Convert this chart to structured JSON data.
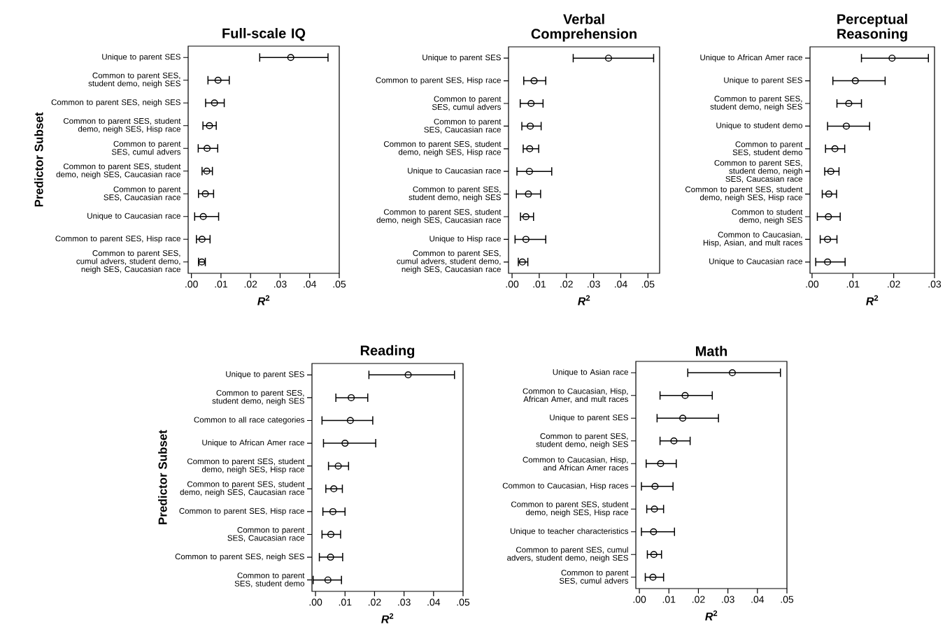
{
  "chart_data": [
    {
      "type": "scatter",
      "orientation": "horizontal",
      "marker": "circle",
      "color": "#000000",
      "title": "Full-scale IQ",
      "xlabel": "*R*$^{2}$",
      "ylabel": "Predictor Subset",
      "categories": [
        "Unique to parent SES",
        "Common to parent SES, student demo, neigh SES",
        "Common to parent SES, neigh SES",
        "Common to parent SES, student demo, neigh SES, Hisp race",
        "Common to parent SES, cumul advers",
        "Common to parent SES, student demo, neigh SES, Caucasian race",
        "Common to parent SES, Caucasian race",
        "Unique to Caucasian race",
        "Common to parent SES, Hisp race",
        "Common to parent SES, cumul advers, student demo, neigh SES, Caucasian race"
      ],
      "values": [
        0.0336,
        0.009,
        0.0078,
        0.0061,
        0.0053,
        0.0052,
        0.0047,
        0.004,
        0.0036,
        0.0035
      ],
      "errors": [
        [
          0.0231,
          0.0462
        ],
        [
          0.0056,
          0.0128
        ],
        [
          0.0048,
          0.0111
        ],
        [
          0.0039,
          0.0084
        ],
        [
          0.0023,
          0.0089
        ],
        [
          0.0036,
          0.0071
        ],
        [
          0.0024,
          0.0075
        ],
        [
          0.0011,
          0.0092
        ],
        [
          0.0017,
          0.0063
        ],
        [
          0.0024,
          0.0047
        ]
      ],
      "xlim": [
        -0.0011,
        0.05
      ],
      "xticks": [
        {
          "value": 0,
          "label": ".00"
        },
        {
          "value": 0.01,
          "label": ".01"
        },
        {
          "value": 0.02,
          "label": ".02"
        },
        {
          "value": 0.03,
          "label": ".03"
        },
        {
          "value": 0.04,
          "label": ".04"
        },
        {
          "value": 0.05,
          "label": ".05"
        }
      ]
    },
    {
      "type": "scatter",
      "orientation": "horizontal",
      "marker": "circle",
      "color": "#000000",
      "title": "Verbal Comprehension",
      "xlabel": "*R*$^{2}$",
      "categories": [
        "Unique to parent SES",
        "Common to parent SES, Hisp race",
        "Common to parent SES, cumul advers",
        "Common to parent SES, Caucasian race",
        "Common to parent SES, student demo, neigh SES, Hisp race",
        "Unique to Caucasian race",
        "Common to parent SES, student demo, neigh SES",
        "Common to parent SES, student demo, neigh SES, Caucasian race",
        "Unique to Hisp race",
        "Common to parent SES, cumul advers, student demo, neigh SES, Caucasian race"
      ],
      "values": [
        0.0355,
        0.0081,
        0.007,
        0.0067,
        0.0065,
        0.0064,
        0.006,
        0.0051,
        0.0051,
        0.0038
      ],
      "errors": [
        [
          0.0225,
          0.0521
        ],
        [
          0.0043,
          0.0124
        ],
        [
          0.003,
          0.0114
        ],
        [
          0.0036,
          0.0107
        ],
        [
          0.0041,
          0.0098
        ],
        [
          0.0018,
          0.0146
        ],
        [
          0.0016,
          0.0105
        ],
        [
          0.0031,
          0.0079
        ],
        [
          0.0011,
          0.0124
        ],
        [
          0.0023,
          0.0058
        ]
      ],
      "xlim": [
        -0.0013,
        0.0543
      ],
      "xticks": [
        {
          "value": 0,
          "label": ".00"
        },
        {
          "value": 0.01,
          "label": ".01"
        },
        {
          "value": 0.02,
          "label": ".02"
        },
        {
          "value": 0.03,
          "label": ".03"
        },
        {
          "value": 0.04,
          "label": ".04"
        },
        {
          "value": 0.05,
          "label": ".05"
        }
      ]
    },
    {
      "type": "scatter",
      "orientation": "horizontal",
      "marker": "circle",
      "color": "#000000",
      "title": "Perceptual Reasoning",
      "xlabel": "*R*$^{2}$",
      "categories": [
        "Unique to African Amer race",
        "Unique to parent SES",
        "Common to parent SES, student demo, neigh SES",
        "Unique to student demo",
        "Common to parent SES, student demo",
        "Common to parent SES, student demo, neigh SES, Caucasian race",
        "Common to parent SES, student demo, neigh SES, Hisp race",
        "Common to student demo, neigh SES",
        "Common to Caucasian, Hisp, Asian, and mult races",
        "Unique to Caucasian race"
      ],
      "values": [
        0.0196,
        0.0106,
        0.009,
        0.0084,
        0.0056,
        0.0046,
        0.0041,
        0.004,
        0.0038,
        0.0038
      ],
      "errors": [
        [
          0.0121,
          0.0285
        ],
        [
          0.0051,
          0.0179
        ],
        [
          0.0061,
          0.0121
        ],
        [
          0.0038,
          0.0141
        ],
        [
          0.0033,
          0.008
        ],
        [
          0.0031,
          0.0066
        ],
        [
          0.0025,
          0.006
        ],
        [
          0.0013,
          0.0069
        ],
        [
          0.002,
          0.0061
        ],
        [
          0.0009,
          0.0081
        ]
      ],
      "xlim": [
        -0.0005,
        0.03
      ],
      "xticks": [
        {
          "value": 0,
          "label": ".00"
        },
        {
          "value": 0.01,
          "label": ".01"
        },
        {
          "value": 0.02,
          "label": ".02"
        },
        {
          "value": 0.03,
          "label": ".03"
        }
      ]
    },
    {
      "type": "scatter",
      "orientation": "horizontal",
      "marker": "circle",
      "color": "#000000",
      "title": "Reading",
      "xlabel": "*R*$^{2}$",
      "ylabel": "Predictor Subset",
      "categories": [
        "Unique to parent SES",
        "Common to parent SES, student demo, neigh SES",
        "Common to all race categories",
        "Unique to African Amer race",
        "Common to parent SES, student demo, neigh SES, Hisp race",
        "Common to parent SES, student demo, neigh SES, Caucasian race",
        "Common to parent SES, Hisp race",
        "Common to parent SES, Caucasian race",
        "Common to parent SES, neigh SES",
        "Common to parent SES, student demo"
      ],
      "values": [
        0.0314,
        0.0121,
        0.0118,
        0.01,
        0.0077,
        0.0062,
        0.0059,
        0.0052,
        0.0051,
        0.0042
      ],
      "errors": [
        [
          0.0181,
          0.0471
        ],
        [
          0.0069,
          0.0177
        ],
        [
          0.0022,
          0.0194
        ],
        [
          0.0027,
          0.0204
        ],
        [
          0.0044,
          0.0112
        ],
        [
          0.0035,
          0.0091
        ],
        [
          0.0025,
          0.01
        ],
        [
          0.0022,
          0.0085
        ],
        [
          0.0013,
          0.0092
        ],
        [
          -0.0008,
          0.0088
        ]
      ],
      "xlim": [
        -0.0012,
        0.05
      ],
      "xticks": [
        {
          "value": 0,
          "label": ".00"
        },
        {
          "value": 0.01,
          "label": ".01"
        },
        {
          "value": 0.02,
          "label": ".02"
        },
        {
          "value": 0.03,
          "label": ".03"
        },
        {
          "value": 0.04,
          "label": ".04"
        },
        {
          "value": 0.05,
          "label": ".05"
        }
      ]
    },
    {
      "type": "scatter",
      "orientation": "horizontal",
      "marker": "circle",
      "color": "#000000",
      "title": "Math",
      "xlabel": "*R*$^{2}$",
      "categories": [
        "Unique to Asian race",
        "Common to Caucasian, Hisp, African Amer, and mult races",
        "Unique to parent SES",
        "Common to parent SES, student demo, neigh SES",
        "Common to Caucasian, Hisp, and African Amer races",
        "Common to Caucasian, Hisp races",
        "Common to parent SES, student demo, neigh SES, Hisp race",
        "Unique to teacher characteristics",
        "Common to parent SES, cumul advers, student demo, neigh SES",
        "Common to parent SES, cumul advers"
      ],
      "values": [
        0.0315,
        0.0155,
        0.0147,
        0.0117,
        0.0072,
        0.0053,
        0.0051,
        0.0048,
        0.0049,
        0.0046
      ],
      "errors": [
        [
          0.0164,
          0.0478
        ],
        [
          0.007,
          0.0247
        ],
        [
          0.006,
          0.0268
        ],
        [
          0.007,
          0.0172
        ],
        [
          0.0023,
          0.0125
        ],
        [
          0.0007,
          0.0114
        ],
        [
          0.0025,
          0.0082
        ],
        [
          0.0007,
          0.0119
        ],
        [
          0.0027,
          0.0075
        ],
        [
          0.002,
          0.0082
        ]
      ],
      "xlim": [
        -0.0012,
        0.05
      ],
      "xticks": [
        {
          "value": 0,
          "label": ".00"
        },
        {
          "value": 0.01,
          "label": ".01"
        },
        {
          "value": 0.02,
          "label": ".02"
        },
        {
          "value": 0.03,
          "label": ".03"
        },
        {
          "value": 0.04,
          "label": ".04"
        },
        {
          "value": 0.05,
          "label": ".05"
        }
      ]
    }
  ]
}
